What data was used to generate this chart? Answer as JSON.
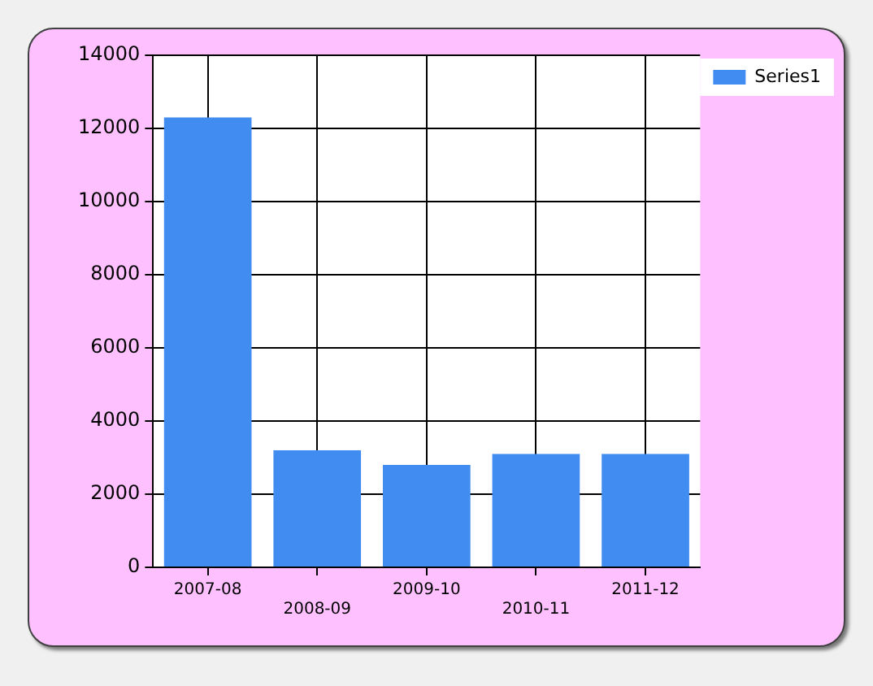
{
  "chart_data": {
    "type": "bar",
    "categories": [
      "2007-08",
      "2008-09",
      "2009-10",
      "2010-11",
      "2011-12"
    ],
    "series": [
      {
        "name": "Series1",
        "color": "#418cf0",
        "values": [
          12300,
          3200,
          2800,
          3100,
          3100
        ]
      }
    ],
    "ylim": [
      0,
      14000
    ],
    "yticks": [
      0,
      2000,
      4000,
      6000,
      8000,
      10000,
      12000,
      14000
    ],
    "grid": true,
    "legend": "top right"
  }
}
